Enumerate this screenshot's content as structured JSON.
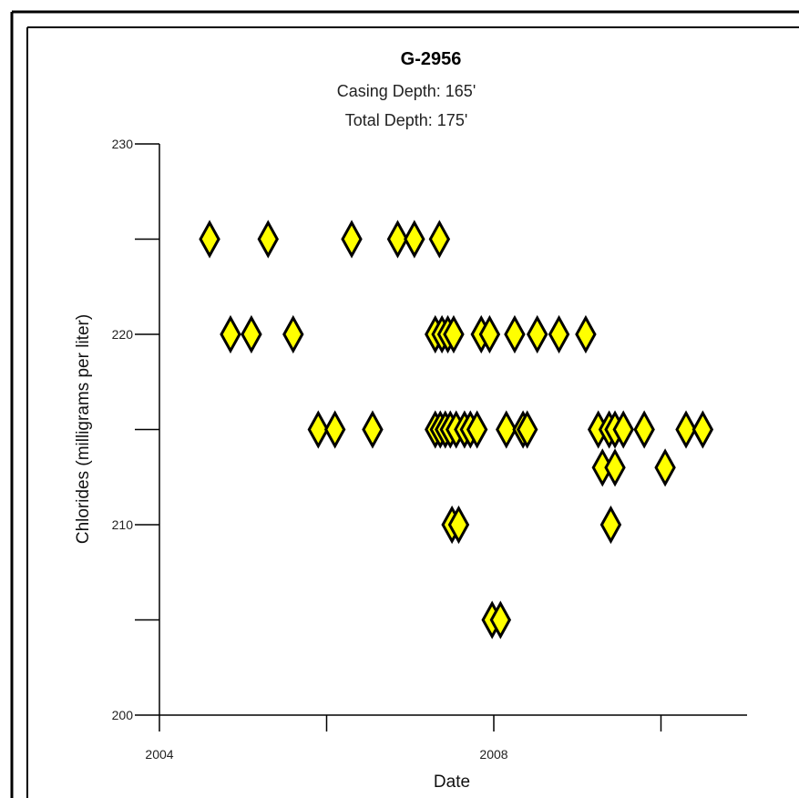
{
  "colors": {
    "marker_fill": "#ffff00",
    "marker_stroke": "#000000",
    "frame": "#000000"
  },
  "chart_data": {
    "type": "scatter",
    "title": "G-2956",
    "subtitle_lines": [
      "Casing Depth: 165'",
      "Total Depth:  175'"
    ],
    "xlabel": "Date",
    "ylabel": "Chlorides (milligrams per liter)",
    "xlim": [
      2004.0,
      2011.0
    ],
    "ylim": [
      200,
      230
    ],
    "x_tick_labels": [
      {
        "value": 2004,
        "label": "2004"
      },
      {
        "value": 2008,
        "label": "2008"
      }
    ],
    "x_minor_ticks": [
      2006,
      2010
    ],
    "y_ticks": [
      200,
      205,
      210,
      215,
      220,
      225,
      230
    ],
    "y_tick_labels": [
      {
        "value": 200,
        "label": "200"
      },
      {
        "value": 210,
        "label": "210"
      },
      {
        "value": 220,
        "label": "220"
      },
      {
        "value": 230,
        "label": "230"
      }
    ],
    "grid": false,
    "legend": "none",
    "marker": "diamond",
    "points": [
      {
        "x": 2004.6,
        "y": 225
      },
      {
        "x": 2005.3,
        "y": 225
      },
      {
        "x": 2006.3,
        "y": 225
      },
      {
        "x": 2006.85,
        "y": 225
      },
      {
        "x": 2007.05,
        "y": 225
      },
      {
        "x": 2007.35,
        "y": 225
      },
      {
        "x": 2004.85,
        "y": 220
      },
      {
        "x": 2005.1,
        "y": 220
      },
      {
        "x": 2005.6,
        "y": 220
      },
      {
        "x": 2007.3,
        "y": 220
      },
      {
        "x": 2007.38,
        "y": 220
      },
      {
        "x": 2007.45,
        "y": 220
      },
      {
        "x": 2007.52,
        "y": 220
      },
      {
        "x": 2007.85,
        "y": 220
      },
      {
        "x": 2007.95,
        "y": 220
      },
      {
        "x": 2008.25,
        "y": 220
      },
      {
        "x": 2008.52,
        "y": 220
      },
      {
        "x": 2008.78,
        "y": 220
      },
      {
        "x": 2009.1,
        "y": 220
      },
      {
        "x": 2005.9,
        "y": 215
      },
      {
        "x": 2006.1,
        "y": 215
      },
      {
        "x": 2006.55,
        "y": 215
      },
      {
        "x": 2007.3,
        "y": 215
      },
      {
        "x": 2007.36,
        "y": 215
      },
      {
        "x": 2007.42,
        "y": 215
      },
      {
        "x": 2007.48,
        "y": 215
      },
      {
        "x": 2007.55,
        "y": 215
      },
      {
        "x": 2007.65,
        "y": 215
      },
      {
        "x": 2007.72,
        "y": 215
      },
      {
        "x": 2007.8,
        "y": 215
      },
      {
        "x": 2008.15,
        "y": 215
      },
      {
        "x": 2008.35,
        "y": 215
      },
      {
        "x": 2008.4,
        "y": 215
      },
      {
        "x": 2009.25,
        "y": 215
      },
      {
        "x": 2009.38,
        "y": 215
      },
      {
        "x": 2009.45,
        "y": 215
      },
      {
        "x": 2009.55,
        "y": 215
      },
      {
        "x": 2009.8,
        "y": 215
      },
      {
        "x": 2010.3,
        "y": 215
      },
      {
        "x": 2010.5,
        "y": 215
      },
      {
        "x": 2009.3,
        "y": 213
      },
      {
        "x": 2009.45,
        "y": 213
      },
      {
        "x": 2010.05,
        "y": 213
      },
      {
        "x": 2007.5,
        "y": 210
      },
      {
        "x": 2007.58,
        "y": 210
      },
      {
        "x": 2009.4,
        "y": 210
      },
      {
        "x": 2007.98,
        "y": 205
      },
      {
        "x": 2008.08,
        "y": 205
      }
    ]
  }
}
